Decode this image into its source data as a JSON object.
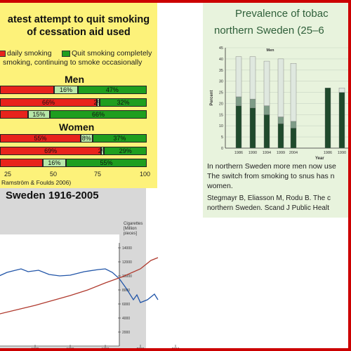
{
  "panel1": {
    "title_line1": "atest attempt to quit smoking",
    "title_line2": "of cessation aid used",
    "legend": {
      "daily": "daily smoking",
      "quit": "Quit smoking completely",
      "occasional": "smoking, continuing to smoke occasionally"
    },
    "men_label": "Men",
    "women_label": "Women",
    "x_ticks": [
      "25",
      "50",
      "75",
      "100"
    ],
    "source": "Ramström & Foulds 2006)",
    "colors": {
      "daily": "#e8231c",
      "occasional": "#b7e8a8",
      "quit": "#1f9e1f"
    }
  },
  "panel2": {
    "title_line1": "Prevalence of tobac",
    "title_line2": "northern Sweden (25–6",
    "series_label": "Men",
    "y_axis_label": "Percent",
    "x_axis_label": "Year",
    "text_line1": "In northern Sweden more men now use",
    "text_line2": "The switch from smoking to snus has n",
    "text_line3": "women.",
    "ref_line1": "Stegmayr B, Eliasson M, Rodu B.  The c",
    "ref_line2": "northern Sweden.  Scand J Public Healt"
  },
  "panel3": {
    "title": "Sweden 1916-2005",
    "y_axis_label_line1": "Cigarettes",
    "y_axis_label_line2": "[Million pieces]"
  },
  "chart_data": [
    {
      "type": "bar",
      "orientation": "horizontal",
      "stacked": true,
      "title": "atest attempt to quit smoking of cessation aid used",
      "legend": [
        "daily smoking",
        "smoking, continuing to smoke occasionally",
        "Quit smoking completely"
      ],
      "xlim": [
        0,
        100
      ],
      "x_ticks": [
        25,
        50,
        75,
        100
      ],
      "groups": [
        {
          "name": "Men",
          "rows": [
            {
              "labels": [
                "",
                "16%",
                "47%"
              ],
              "values": [
                37,
                16,
                47
              ]
            },
            {
              "labels": [
                "66%",
                "2%",
                "32%"
              ],
              "values": [
                66,
                2,
                32
              ]
            },
            {
              "labels": [
                "",
                "15%",
                "66%"
              ],
              "values": [
                19,
                15,
                66
              ]
            }
          ]
        },
        {
          "name": "Women",
          "rows": [
            {
              "labels": [
                "55%",
                "8%",
                "37%"
              ],
              "values": [
                55,
                8,
                37
              ]
            },
            {
              "labels": [
                "69%",
                "2%",
                "29%"
              ],
              "values": [
                69,
                2,
                29
              ]
            },
            {
              "labels": [
                "",
                "16%",
                "55%"
              ],
              "values": [
                29,
                16,
                55
              ]
            }
          ]
        }
      ],
      "source": "Ramström & Foulds 2006)"
    },
    {
      "type": "bar",
      "stacked": true,
      "title": "Prevalence of tobac northern Sweden (25–6",
      "ylabel": "Percent",
      "xlabel": "Year",
      "ylim": [
        0,
        45
      ],
      "y_ticks": [
        0,
        5,
        10,
        15,
        20,
        25,
        30,
        35,
        40,
        45
      ],
      "categories": [
        "1986",
        "1990",
        "1994",
        "1999",
        "2004",
        "1986",
        "1990"
      ],
      "group_labels": [
        "Men"
      ],
      "series": [
        {
          "color": "#1f4a2c",
          "values": [
            19,
            18,
            15,
            11,
            9,
            27,
            25
          ]
        },
        {
          "color": "#7e9c87",
          "values": [
            4,
            4,
            4,
            3,
            3,
            0,
            0
          ]
        },
        {
          "color": "#dfe8df",
          "values": [
            18,
            19,
            20,
            26,
            26,
            0,
            2
          ]
        }
      ]
    },
    {
      "type": "line",
      "title": "Sweden 1916-2005",
      "ylabel": "Cigarettes [Million pieces]",
      "ylim": [
        0,
        14000
      ],
      "y_ticks": [
        2000,
        4000,
        6000,
        8000,
        10000,
        12000,
        14000
      ],
      "x_ticks": [
        1970,
        1980,
        1990,
        2000,
        2010
      ],
      "series": [
        {
          "color": "#2155a8",
          "x": [
            1940,
            1946,
            1950,
            1954,
            1958,
            1962,
            1966,
            1968,
            1971,
            1974,
            1977,
            1980,
            1984,
            1988,
            1990,
            1992,
            1994,
            1996,
            1998,
            1999,
            2000,
            2002,
            2004,
            2005
          ],
          "y": [
            5800,
            6200,
            6900,
            8200,
            9600,
            10500,
            11000,
            10600,
            10800,
            10200,
            10000,
            10100,
            10600,
            10900,
            11000,
            10500,
            9600,
            8200,
            6600,
            7300,
            6200,
            6600,
            7400,
            6600
          ]
        },
        {
          "color": "#b03a2e",
          "x": [
            1940,
            1945,
            1950,
            1955,
            1960,
            1965,
            1970,
            1975,
            1980,
            1985,
            1990,
            1995,
            2000,
            2003,
            2005
          ],
          "y": [
            5600,
            5000,
            4700,
            4500,
            4600,
            5200,
            5800,
            6500,
            7200,
            8000,
            9000,
            9900,
            11000,
            12200,
            12600
          ]
        }
      ]
    }
  ]
}
